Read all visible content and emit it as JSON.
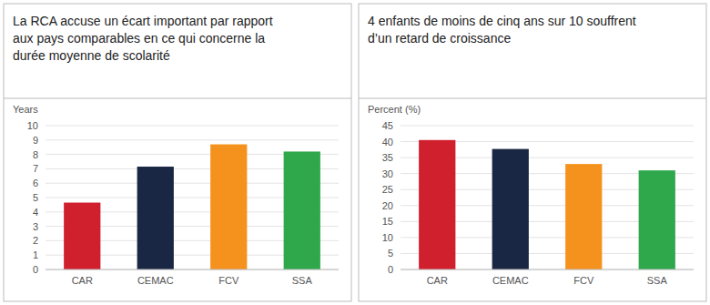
{
  "chart_data": [
    {
      "type": "bar",
      "title": "La RCA accuse un écart important par rapport\naux pays comparables en ce qui concerne la\ndurée moyenne de scolarité",
      "ylabel": "Years",
      "categories": [
        "CAR",
        "CEMAC",
        "FCV",
        "SSA"
      ],
      "values": [
        4.65,
        7.15,
        8.7,
        8.2
      ],
      "colors": [
        "#d0202e",
        "#1a2744",
        "#f5921e",
        "#2ea84b"
      ],
      "ylim": [
        0,
        10
      ],
      "yticks": [
        0,
        1,
        2,
        3,
        4,
        5,
        6,
        7,
        8,
        9,
        10
      ],
      "grid": true
    },
    {
      "type": "bar",
      "title": "4 enfants de moins de cinq ans sur 10 souffrent\nd’un retard de croissance",
      "ylabel": "Percent (%)",
      "categories": [
        "CAR",
        "CEMAC",
        "FCV",
        "SSA"
      ],
      "values": [
        40.5,
        37.7,
        33.0,
        31.0
      ],
      "colors": [
        "#d0202e",
        "#1a2744",
        "#f5921e",
        "#2ea84b"
      ],
      "ylim": [
        0,
        45
      ],
      "yticks": [
        0,
        5,
        10,
        15,
        20,
        25,
        30,
        35,
        40,
        45
      ],
      "grid": true
    }
  ]
}
